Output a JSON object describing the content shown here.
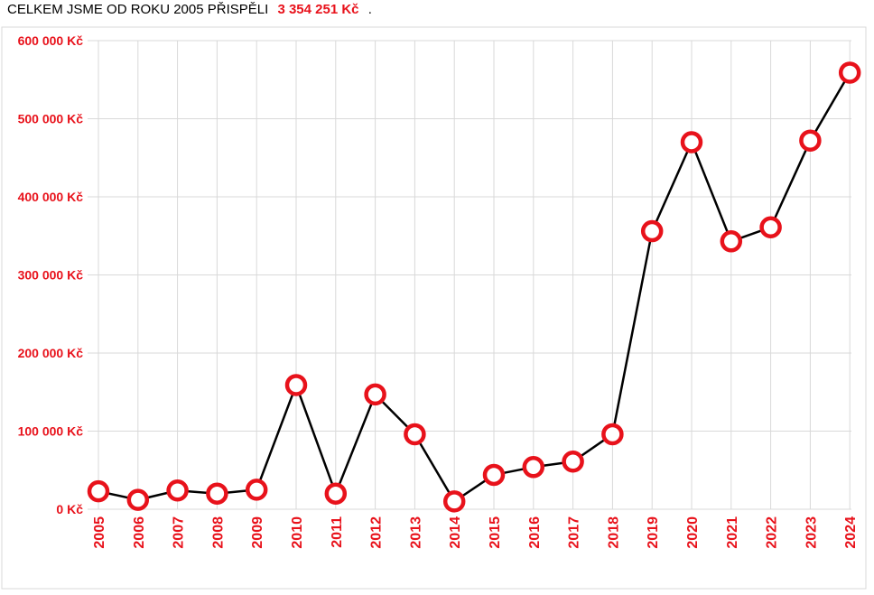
{
  "header": {
    "prefix": "CELKEM JSME OD ROKU 2005 PŘISPĚLI",
    "total": "3 354 251 Kč",
    "suffix": "."
  },
  "colors": {
    "accent": "#e8121b",
    "line": "#000000",
    "grid": "#d9d9d9"
  },
  "chart_data": {
    "type": "line",
    "title": "",
    "xlabel": "",
    "ylabel": "",
    "categories": [
      "2005",
      "2006",
      "2007",
      "2008",
      "2009",
      "2010",
      "2011",
      "2012",
      "2013",
      "2014",
      "2015",
      "2016",
      "2017",
      "2018",
      "2019",
      "2020",
      "2021",
      "2022",
      "2023",
      "2024"
    ],
    "values": [
      23000,
      12000,
      24000,
      20000,
      25000,
      159000,
      20000,
      147000,
      96000,
      10000,
      44000,
      54000,
      61000,
      96000,
      356000,
      470000,
      343000,
      361000,
      472000,
      559000
    ],
    "ylim": [
      0,
      600000
    ],
    "yticks": [
      0,
      100000,
      200000,
      300000,
      400000,
      500000,
      600000
    ],
    "ytick_labels": [
      "0 Kč",
      "100 000 Kč",
      "200 000 Kč",
      "300 000 Kč",
      "400 000 Kč",
      "500 000 Kč",
      "600 000 Kč"
    ],
    "grid": true,
    "legend": "none",
    "marker": "hollow-circle"
  }
}
